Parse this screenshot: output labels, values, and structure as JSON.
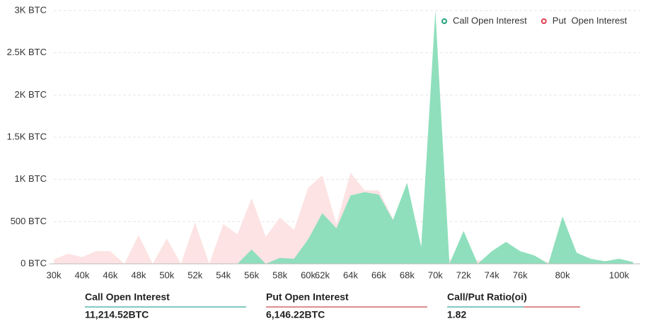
{
  "chart_data": {
    "type": "area",
    "categories": [
      "30k",
      null,
      "40k",
      null,
      "46k",
      null,
      "48k",
      null,
      "50k",
      null,
      "52k",
      null,
      "54k",
      null,
      "56k",
      null,
      "58k",
      null,
      "60k",
      "62k",
      null,
      "64k",
      null,
      "66k",
      null,
      "68k",
      null,
      "70k",
      null,
      "72k",
      null,
      "74k",
      null,
      "76k",
      null,
      null,
      "80k",
      null,
      null,
      null,
      "100k",
      null
    ],
    "series": [
      {
        "name": "Put  Open Interest",
        "color": "#fde3e3",
        "marker_color": "#e0404f",
        "values": [
          50,
          120,
          80,
          150,
          150,
          0,
          340,
          0,
          300,
          0,
          490,
          0,
          470,
          350,
          780,
          320,
          550,
          400,
          900,
          1050,
          470,
          1080,
          870,
          870,
          530,
          600,
          150,
          400,
          50,
          100,
          40,
          60,
          80,
          40,
          30,
          20,
          150,
          60,
          30,
          20,
          30,
          10
        ]
      },
      {
        "name": "Call Open Interest",
        "color": "#8fdfbc",
        "marker_color": "#26a17b",
        "values": [
          0,
          0,
          0,
          0,
          0,
          0,
          0,
          0,
          0,
          0,
          0,
          0,
          0,
          0,
          170,
          0,
          70,
          60,
          290,
          600,
          420,
          810,
          850,
          820,
          520,
          960,
          200,
          3000,
          0,
          390,
          0,
          150,
          260,
          150,
          100,
          0,
          560,
          130,
          60,
          30,
          60,
          20
        ]
      }
    ],
    "ylim": [
      0,
      3000
    ],
    "yticks": [
      {
        "value": 0,
        "label": "0 BTC"
      },
      {
        "value": 500,
        "label": "500 BTC"
      },
      {
        "value": 1000,
        "label": "1K BTC"
      },
      {
        "value": 1500,
        "label": "1.5K BTC"
      },
      {
        "value": 2000,
        "label": "2K BTC"
      },
      {
        "value": 2500,
        "label": "2.5K BTC"
      },
      {
        "value": 3000,
        "label": "3K BTC"
      }
    ],
    "grid": true,
    "legend": "top-right"
  },
  "summary": [
    {
      "label": "Call Open Interest",
      "value": "11,214.52BTC"
    },
    {
      "label": "Put Open Interest",
      "value": "6,146.22BTC"
    },
    {
      "label": "Call/Put Ratio(oi)",
      "value": "1.82"
    }
  ]
}
